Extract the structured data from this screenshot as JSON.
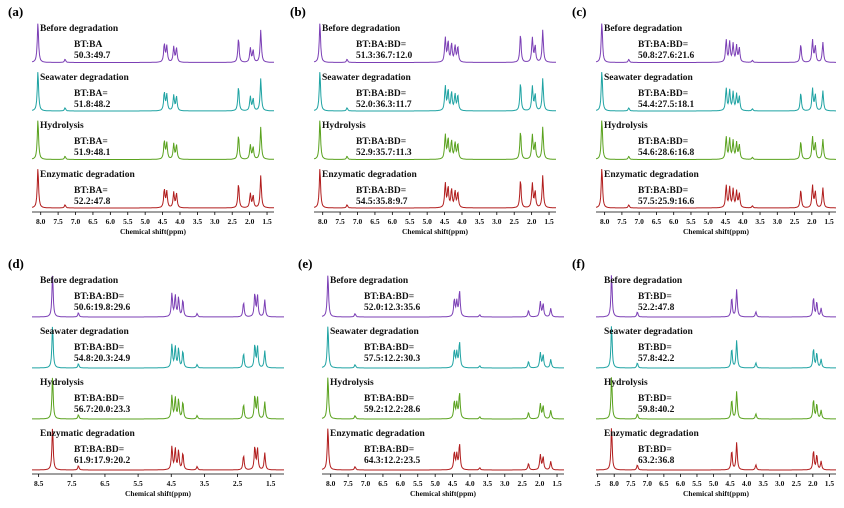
{
  "chart_data": [
    {
      "panel": "(a)",
      "type": "line",
      "xlabel": "Chemical shift(ppm)",
      "xticks": [
        "8.0",
        "7.5",
        "7.0",
        "6.5",
        "6.0",
        "5.5",
        "5.0",
        "4.5",
        "4.0",
        "3.5",
        "3.0",
        "2.5",
        "2.0",
        "1.5"
      ],
      "xlim": [
        8.25,
        1.3
      ],
      "peaks": [
        [
          8.08,
          1.0
        ],
        [
          7.3,
          0.08
        ],
        [
          4.45,
          0.45
        ],
        [
          4.38,
          0.4
        ],
        [
          4.18,
          0.38
        ],
        [
          4.1,
          0.35
        ],
        [
          2.32,
          0.6
        ],
        [
          1.98,
          0.35
        ],
        [
          1.9,
          0.3
        ],
        [
          1.68,
          0.8
        ]
      ],
      "series": [
        {
          "name": "Before degradation",
          "color": "#7b3fb5",
          "ratio": [
            "BT:BA",
            "50.3:49.7"
          ]
        },
        {
          "name": "Seawater degradation",
          "color": "#1fa3a3",
          "ratio": [
            "BT:BA=",
            "51.8:48.2"
          ]
        },
        {
          "name": "Hydrolysis",
          "color": "#5aa21e",
          "ratio": [
            "BT:BA=",
            "51.9:48.1"
          ]
        },
        {
          "name": "Enzymatic degradation",
          "color": "#b11d1d",
          "ratio": [
            "BT:BA=",
            "52.2:47.8"
          ]
        }
      ]
    },
    {
      "panel": "(b)",
      "type": "line",
      "xlabel": "Chemical shift(ppm)",
      "xticks": [
        "8.0",
        "7.5",
        "7.0",
        "6.5",
        "6.0",
        "5.5",
        "5.0",
        "4.5",
        "4.0",
        "3.5",
        "3.0",
        "2.5",
        "2.0",
        "1.5"
      ],
      "xlim": [
        8.25,
        1.3
      ],
      "peaks": [
        [
          8.08,
          1.0
        ],
        [
          7.3,
          0.08
        ],
        [
          4.48,
          0.6
        ],
        [
          4.4,
          0.5
        ],
        [
          4.3,
          0.45
        ],
        [
          4.2,
          0.4
        ],
        [
          4.12,
          0.38
        ],
        [
          2.32,
          0.7
        ],
        [
          1.98,
          0.6
        ],
        [
          1.9,
          0.4
        ],
        [
          1.68,
          0.8
        ]
      ],
      "series": [
        {
          "name": "Before degradation",
          "color": "#7b3fb5",
          "ratio": [
            "BT:BA:BD=",
            "51.3:36.7:12.0"
          ]
        },
        {
          "name": "Seawater degradation",
          "color": "#1fa3a3",
          "ratio": [
            "BT:BA:BD=",
            "52.0:36.3:11.7"
          ]
        },
        {
          "name": "Hydrolysis",
          "color": "#5aa21e",
          "ratio": [
            "BT:BA:BD=",
            "52.9:35.7:11.3"
          ]
        },
        {
          "name": "Enzymatic degradation",
          "color": "#b11d1d",
          "ratio": [
            "BT:BA:BD=",
            "54.5:35.8:9.7"
          ]
        }
      ]
    },
    {
      "panel": "(c)",
      "type": "line",
      "xlabel": "Chemical shift(ppm)",
      "xticks": [
        "8.0",
        "7.5",
        "7.0",
        "6.5",
        "6.0",
        "5.5",
        "5.0",
        "4.5",
        "4.0",
        "3.5",
        "3.0",
        "2.5",
        "2.0",
        "1.5"
      ],
      "xlim": [
        8.25,
        1.3
      ],
      "peaks": [
        [
          8.08,
          1.0
        ],
        [
          7.3,
          0.08
        ],
        [
          4.48,
          0.55
        ],
        [
          4.38,
          0.5
        ],
        [
          4.28,
          0.45
        ],
        [
          4.18,
          0.4
        ],
        [
          4.1,
          0.35
        ],
        [
          3.72,
          0.05
        ],
        [
          2.32,
          0.45
        ],
        [
          1.98,
          0.55
        ],
        [
          1.9,
          0.4
        ],
        [
          1.68,
          0.5
        ]
      ],
      "series": [
        {
          "name": "Before degradation",
          "color": "#7b3fb5",
          "ratio": [
            "BT:BA:BD=",
            "50.8:27.6:21.6"
          ]
        },
        {
          "name": "Seawater degradation",
          "color": "#1fa3a3",
          "ratio": [
            "BT:BA:BD=",
            "54.4:27.5:18.1"
          ]
        },
        {
          "name": "Hydrolysis",
          "color": "#5aa21e",
          "ratio": [
            "BT:BA:BD=",
            "54.6:28.6:16.8"
          ]
        },
        {
          "name": "Enzymatic degradation",
          "color": "#b11d1d",
          "ratio": [
            "BT:BA:BD=",
            "57.5:25.9:16.6"
          ]
        }
      ]
    },
    {
      "panel": "(d)",
      "type": "line",
      "xlabel": "Chemical shift(ppm)",
      "xticks": [
        "8.5",
        "7.5",
        "6.5",
        "5.5",
        "4.5",
        "3.5",
        "2.5",
        "1.5"
      ],
      "xlim": [
        8.7,
        1.1
      ],
      "peaks": [
        [
          8.08,
          1.0
        ],
        [
          7.3,
          0.1
        ],
        [
          4.48,
          0.55
        ],
        [
          4.38,
          0.5
        ],
        [
          4.28,
          0.45
        ],
        [
          4.15,
          0.4
        ],
        [
          3.72,
          0.08
        ],
        [
          2.32,
          0.35
        ],
        [
          1.98,
          0.55
        ],
        [
          1.9,
          0.5
        ],
        [
          1.68,
          0.4
        ]
      ],
      "series": [
        {
          "name": "Before degradation",
          "color": "#7b3fb5",
          "ratio": [
            "BT:BA:BD=",
            "50.6:19.8:29.6"
          ]
        },
        {
          "name": "Seawater degradation",
          "color": "#1fa3a3",
          "ratio": [
            "BT:BA:BD=",
            "54.8:20.3:24.9"
          ]
        },
        {
          "name": "Hydrolysis",
          "color": "#5aa21e",
          "ratio": [
            "BT:BA:BD=",
            "56.7:20.0:23.3"
          ]
        },
        {
          "name": "Enzymatic degradation",
          "color": "#b11d1d",
          "ratio": [
            "BT:BA:BD=",
            "61.9:17.9:20.2"
          ]
        }
      ]
    },
    {
      "panel": "(e)",
      "type": "line",
      "xlabel": "Chemical shift(ppm)",
      "xticks": [
        "8.0",
        "7.5",
        "7.0",
        "6.5",
        "6.0",
        "5.5",
        "5.0",
        "4.5",
        "4.0",
        "3.5",
        "3.0",
        "2.5",
        "2.0",
        "1.5"
      ],
      "xlim": [
        8.25,
        1.3
      ],
      "peaks": [
        [
          8.08,
          1.0
        ],
        [
          7.3,
          0.08
        ],
        [
          4.45,
          0.4
        ],
        [
          4.38,
          0.35
        ],
        [
          4.3,
          0.6
        ],
        [
          3.72,
          0.05
        ],
        [
          2.32,
          0.15
        ],
        [
          1.98,
          0.35
        ],
        [
          1.9,
          0.3
        ],
        [
          1.68,
          0.2
        ]
      ],
      "series": [
        {
          "name": "Before degradation",
          "color": "#7b3fb5",
          "ratio": [
            "BT:BA:BD=",
            "52.0:12.3:35.6"
          ]
        },
        {
          "name": "Seawater degradation",
          "color": "#1fa3a3",
          "ratio": [
            "BT:BA:BD=",
            "57.5:12.2:30.3"
          ]
        },
        {
          "name": "Hydrolysis",
          "color": "#5aa21e",
          "ratio": [
            "BT:BA:BD=",
            "59.2:12.2:28.6"
          ]
        },
        {
          "name": "Enzymatic degradation",
          "color": "#b11d1d",
          "ratio": [
            "BT:BA:BD=",
            "64.3:12.2:23.5"
          ]
        }
      ]
    },
    {
      "panel": "(f)",
      "type": "line",
      "xlabel": "Chemical shift(ppm)",
      "xticks": [
        ".5",
        "8.0",
        "7.5",
        "7.0",
        "6.5",
        "6.0",
        "5.5",
        "5.0",
        "4.5",
        "4.0",
        "3.5",
        "3.0",
        "2.5",
        "2.0",
        "1.5"
      ],
      "xlim": [
        8.55,
        1.3
      ],
      "peaks": [
        [
          8.08,
          1.0
        ],
        [
          7.3,
          0.12
        ],
        [
          4.45,
          0.45
        ],
        [
          4.3,
          0.65
        ],
        [
          3.72,
          0.12
        ],
        [
          1.98,
          0.45
        ],
        [
          1.88,
          0.35
        ],
        [
          1.75,
          0.2
        ]
      ],
      "series": [
        {
          "name": "Before degradation",
          "color": "#7b3fb5",
          "ratio": [
            "BT:BD=",
            "52.2:47.8"
          ]
        },
        {
          "name": "Seawater degradation",
          "color": "#1fa3a3",
          "ratio": [
            "BT:BD=",
            "57.8:42.2"
          ]
        },
        {
          "name": "Hydrolysis",
          "color": "#5aa21e",
          "ratio": [
            "BT:BD=",
            "59.8:40.2"
          ]
        },
        {
          "name": "Enzymatic degradation",
          "color": "#b11d1d",
          "ratio": [
            "BT:BD=",
            "63.2:36.8"
          ]
        }
      ]
    }
  ]
}
